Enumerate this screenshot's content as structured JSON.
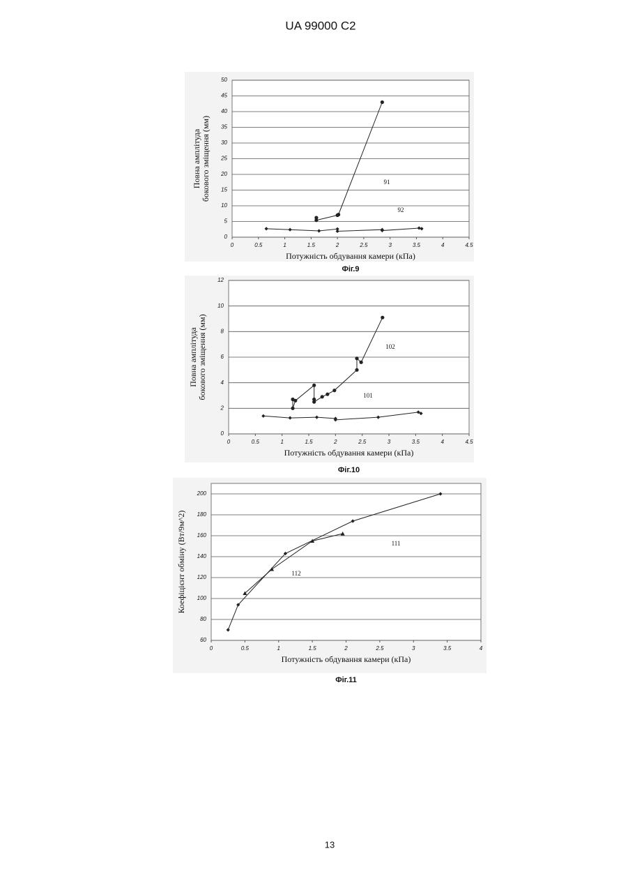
{
  "header": "UA   99000   C2",
  "page_number": "13",
  "chart_data": [
    {
      "type": "scatter",
      "caption": "Фіг.9",
      "y_label": [
        "Повна амплітуда",
        "бокового зміщення (мм)"
      ],
      "x_label": "Потужність обдування камери (кПа)",
      "xlim": [
        0,
        4.5
      ],
      "xticks": [
        0,
        0.5,
        1,
        1.5,
        2,
        2.5,
        3,
        3.5,
        4,
        4.5
      ],
      "ylim": [
        0,
        50
      ],
      "yticks": [
        0,
        5,
        10,
        15,
        20,
        25,
        30,
        35,
        40,
        45,
        50
      ],
      "grid": true,
      "series": [
        {
          "name": "91",
          "color": "#222222",
          "marker": "diamond",
          "x": [
            0.65,
            1.1,
            1.65,
            2.0,
            2.0,
            2.85,
            2.85,
            3.55,
            3.6
          ],
          "values": [
            2.7,
            2.4,
            2.0,
            2.6,
            1.9,
            2.4,
            2.1,
            2.9,
            2.7
          ]
        },
        {
          "name": "92",
          "color": "#222222",
          "marker": "circle",
          "x": [
            1.6,
            1.6,
            2.0,
            2.02,
            2.85
          ],
          "values": [
            6.2,
            5.4,
            7.0,
            7.2,
            43
          ]
        }
      ]
    },
    {
      "type": "scatter",
      "caption": "Фіг.10",
      "y_label": [
        "Повна амплітуда",
        "бокового зміщення (мм)"
      ],
      "x_label": "Потужність обдування камери (кПа)",
      "xlim": [
        0,
        4.5
      ],
      "xticks": [
        0,
        0.5,
        1,
        1.5,
        2,
        2.5,
        3,
        3.5,
        4,
        4.5
      ],
      "ylim": [
        0,
        12
      ],
      "yticks": [
        0,
        2,
        4,
        6,
        8,
        10,
        12
      ],
      "grid": true,
      "series": [
        {
          "name": "101",
          "color": "#222222",
          "marker": "diamond",
          "x": [
            0.65,
            1.15,
            1.65,
            2.0,
            2.0,
            2.8,
            3.55,
            3.6
          ],
          "values": [
            1.4,
            1.25,
            1.3,
            1.2,
            1.1,
            1.3,
            1.7,
            1.6
          ]
        },
        {
          "name": "102",
          "color": "#222222",
          "marker": "circle",
          "x": [
            1.2,
            1.2,
            1.25,
            1.6,
            1.6,
            1.6,
            1.75,
            1.85,
            1.98,
            2.4,
            2.4,
            2.48,
            2.88
          ],
          "values": [
            2.7,
            2.0,
            2.6,
            3.8,
            2.7,
            2.5,
            2.9,
            3.1,
            3.4,
            5.0,
            5.9,
            5.6,
            9.1
          ]
        }
      ]
    },
    {
      "type": "scatter",
      "caption": "Фіг.11",
      "y_label": [
        "Коефіцієнт обміну (Вт/9м^2)"
      ],
      "x_label": "Потужність обдування камери (кПа)",
      "xlim": [
        0,
        4
      ],
      "xticks": [
        0,
        0.5,
        1,
        1.5,
        2,
        2.5,
        3,
        3.5,
        4
      ],
      "ylim": [
        60,
        210
      ],
      "yticks": [
        60,
        80,
        100,
        120,
        140,
        160,
        180,
        200
      ],
      "grid": true,
      "series": [
        {
          "name": "111",
          "color": "#222222",
          "marker": "diamond",
          "x": [
            0.25,
            0.4,
            1.1,
            2.1,
            3.4
          ],
          "values": [
            70,
            94,
            143,
            174,
            200
          ]
        },
        {
          "name": "112",
          "color": "#222222",
          "marker": "triangle",
          "x": [
            0.5,
            0.9,
            1.5,
            1.95
          ],
          "values": [
            105,
            128,
            155,
            162
          ]
        }
      ]
    }
  ]
}
